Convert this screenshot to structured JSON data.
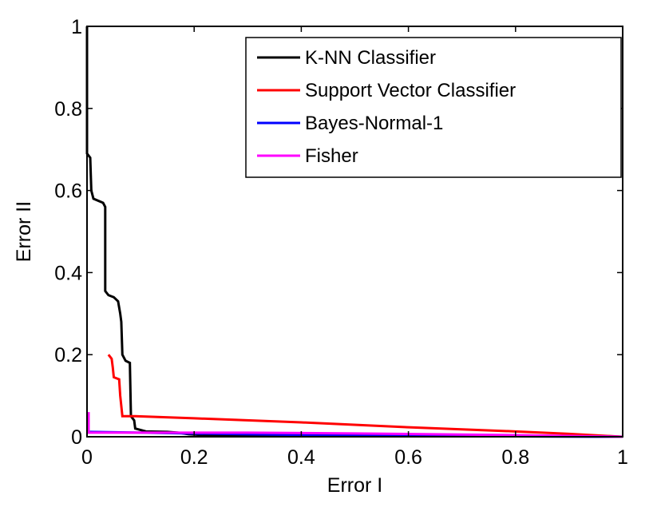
{
  "chart_data": {
    "type": "line",
    "title": "",
    "xlabel": "Error I",
    "ylabel": "Error II",
    "xlim": [
      0,
      1
    ],
    "ylim": [
      0,
      1
    ],
    "xticks": [
      "0",
      "0.2",
      "0.4",
      "0.6",
      "0.8",
      "1"
    ],
    "yticks": [
      "0",
      "0.2",
      "0.4",
      "0.6",
      "0.8",
      "1"
    ],
    "grid": false,
    "legend_position": "top-right",
    "series": [
      {
        "name": "K-NN Classifier",
        "color": "#000000",
        "points": [
          [
            0.0,
            1.0
          ],
          [
            0.0,
            0.69
          ],
          [
            0.006,
            0.68
          ],
          [
            0.008,
            0.6
          ],
          [
            0.012,
            0.58
          ],
          [
            0.03,
            0.57
          ],
          [
            0.034,
            0.56
          ],
          [
            0.034,
            0.355
          ],
          [
            0.04,
            0.345
          ],
          [
            0.05,
            0.34
          ],
          [
            0.054,
            0.335
          ],
          [
            0.058,
            0.33
          ],
          [
            0.062,
            0.3
          ],
          [
            0.064,
            0.28
          ],
          [
            0.066,
            0.2
          ],
          [
            0.072,
            0.185
          ],
          [
            0.08,
            0.18
          ],
          [
            0.082,
            0.05
          ],
          [
            0.088,
            0.04
          ],
          [
            0.09,
            0.02
          ],
          [
            0.11,
            0.013
          ],
          [
            0.15,
            0.012
          ],
          [
            0.17,
            0.01
          ],
          [
            0.19,
            0.006
          ],
          [
            0.22,
            0.004
          ],
          [
            0.35,
            0.003
          ],
          [
            0.5,
            0.002
          ],
          [
            0.8,
            0.001
          ],
          [
            1.0,
            0.0
          ]
        ]
      },
      {
        "name": "Support Vector Classifier",
        "color": "#ff0000",
        "points": [
          [
            0.04,
            0.2
          ],
          [
            0.046,
            0.19
          ],
          [
            0.048,
            0.17
          ],
          [
            0.05,
            0.145
          ],
          [
            0.06,
            0.14
          ],
          [
            0.062,
            0.1
          ],
          [
            0.066,
            0.05
          ],
          [
            0.09,
            0.05
          ],
          [
            0.2,
            0.045
          ],
          [
            0.4,
            0.035
          ],
          [
            0.6,
            0.023
          ],
          [
            0.8,
            0.013
          ],
          [
            0.9,
            0.007
          ],
          [
            1.0,
            0.0
          ]
        ]
      },
      {
        "name": "Bayes-Normal-1",
        "color": "#0000ff",
        "points": [
          [
            0.0,
            0.012
          ],
          [
            0.1,
            0.01
          ],
          [
            0.3,
            0.006
          ],
          [
            0.5,
            0.003
          ],
          [
            0.8,
            0.001
          ],
          [
            1.0,
            0.0
          ]
        ]
      },
      {
        "name": "Fisher",
        "color": "#ff00ff",
        "points": [
          [
            0.003,
            0.06
          ],
          [
            0.003,
            0.01
          ],
          [
            0.05,
            0.01
          ],
          [
            0.3,
            0.01
          ],
          [
            0.5,
            0.008
          ],
          [
            0.8,
            0.004
          ],
          [
            1.0,
            0.0
          ]
        ]
      }
    ]
  }
}
